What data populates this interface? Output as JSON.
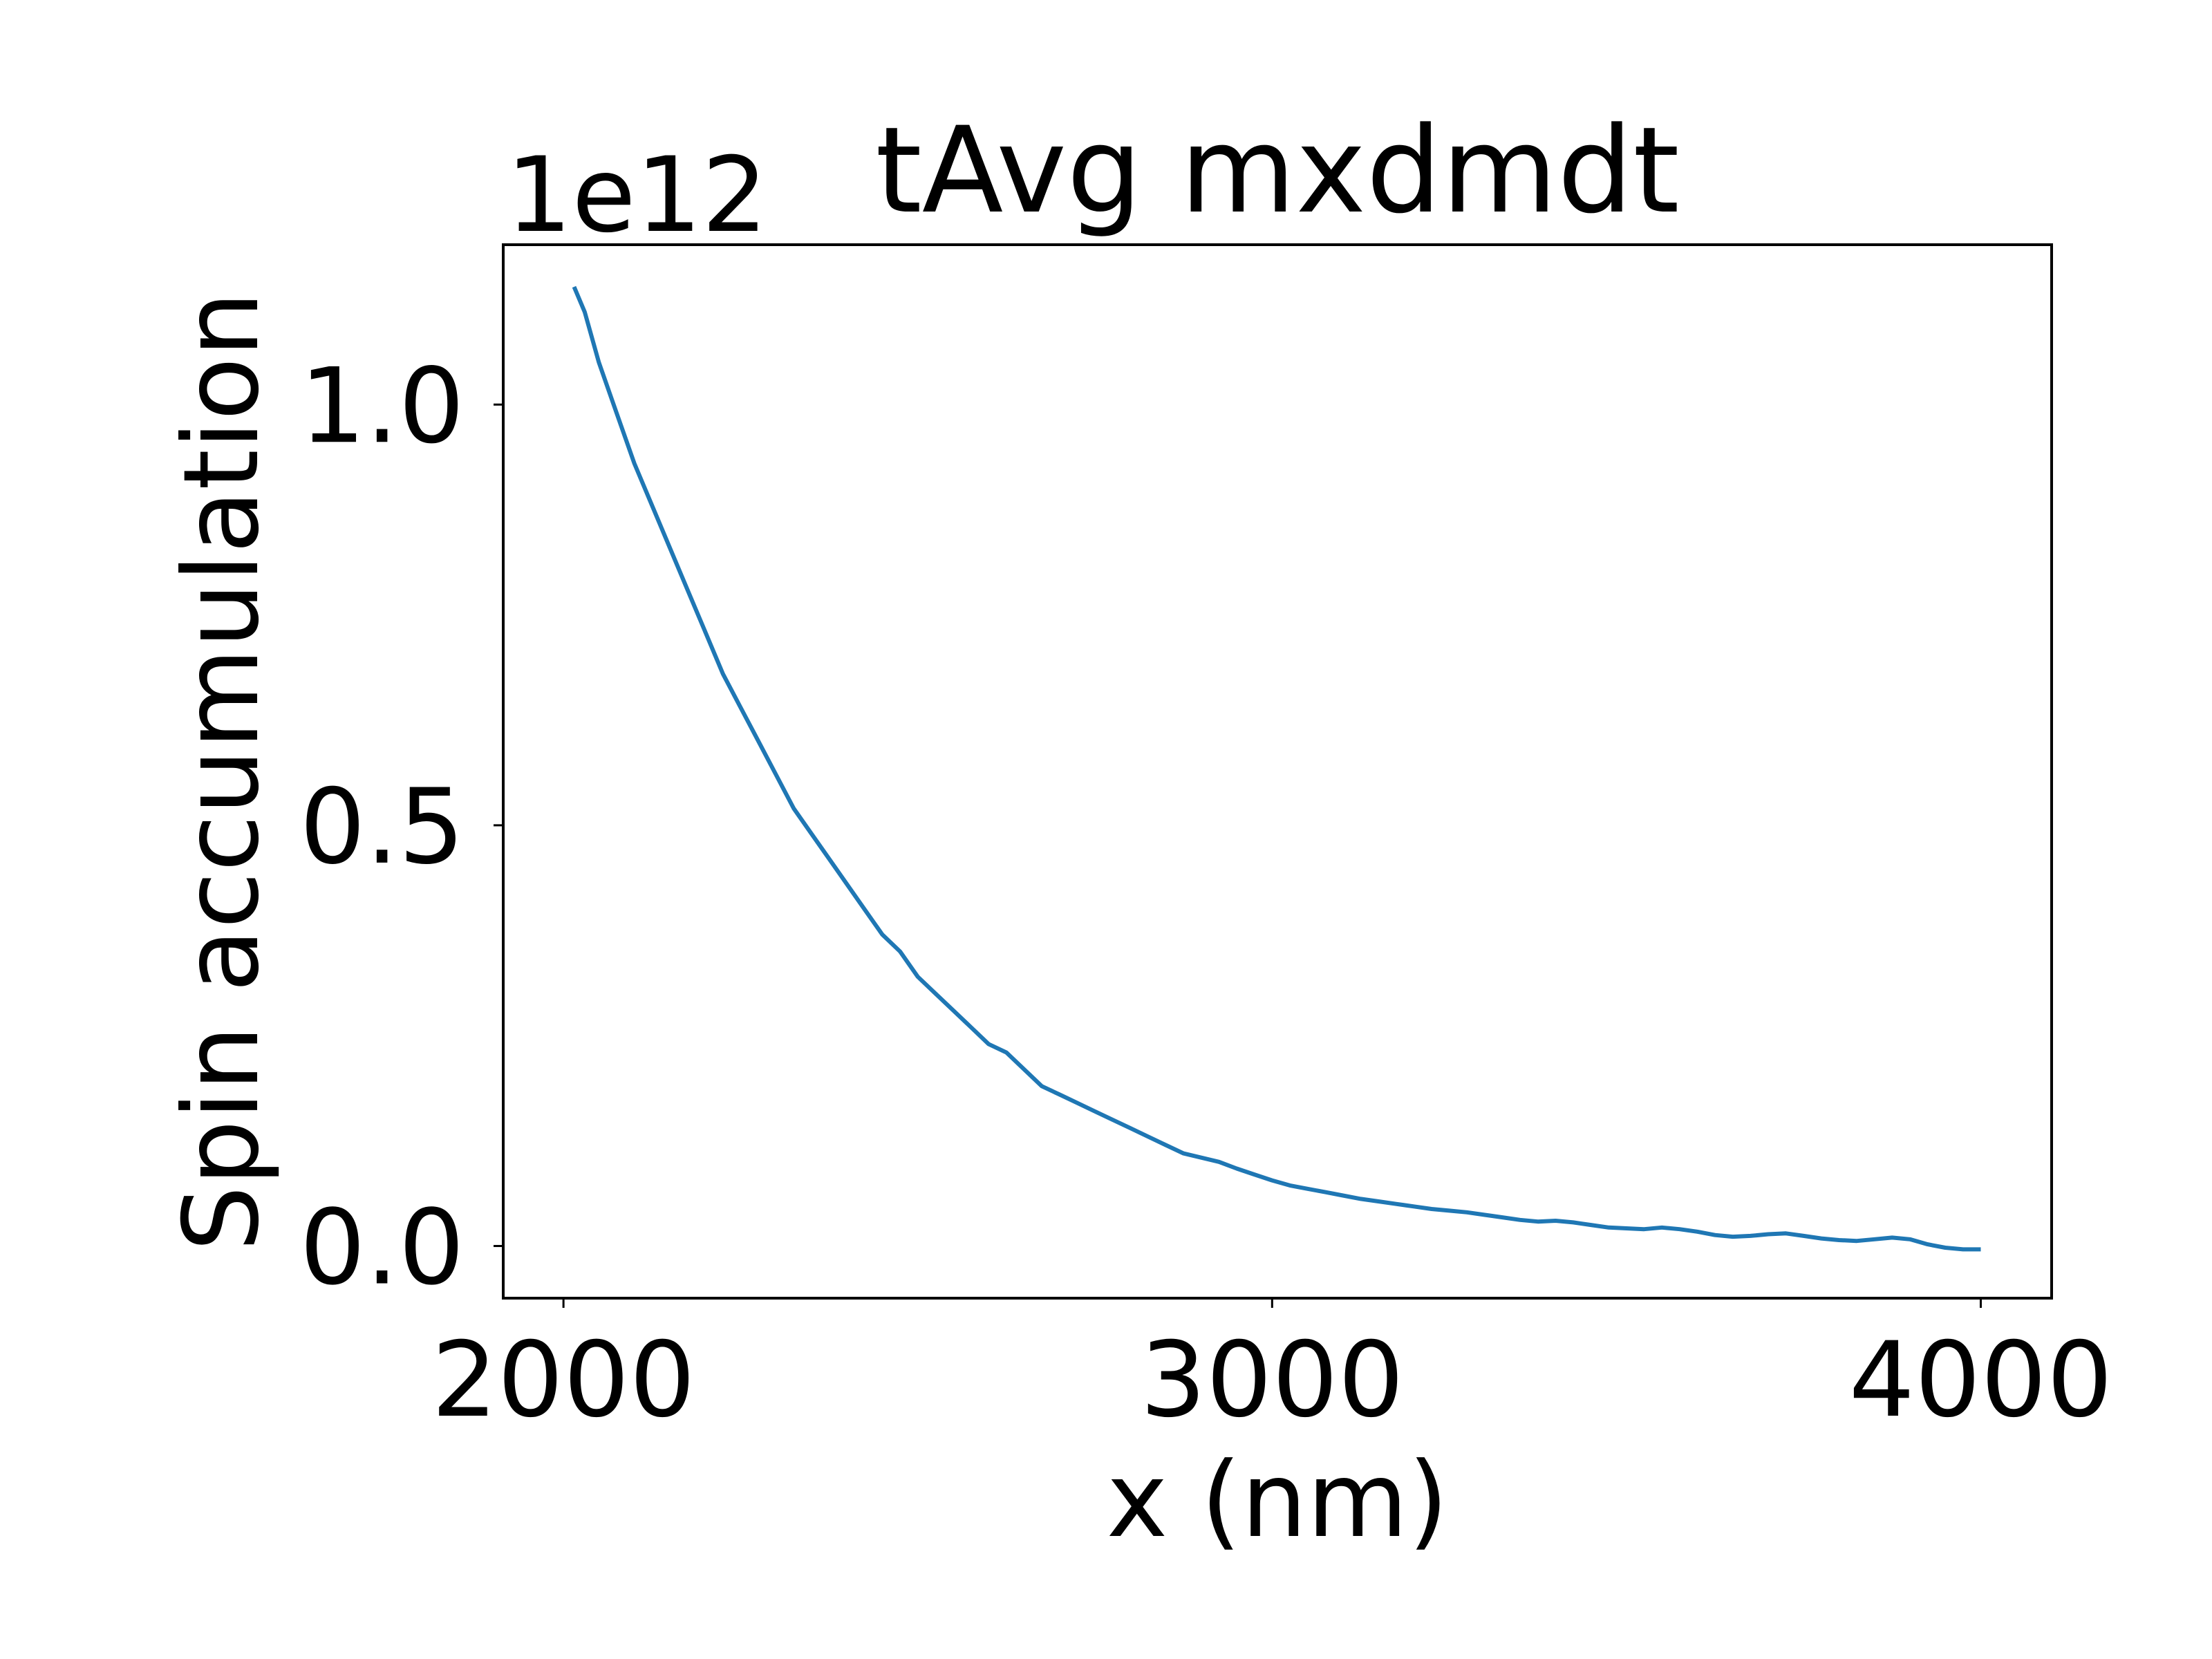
{
  "chart_data": {
    "type": "line",
    "title": "tAvg mxdmdt",
    "xlabel": "x (nm)",
    "ylabel": "Spin accumulation",
    "y_offset_label": "1e12",
    "y_scale_factor": 1000000000000.0,
    "xlim": [
      1915,
      4100
    ],
    "ylim": [
      -0.062,
      1.19
    ],
    "xticks": [
      2000,
      3000,
      4000
    ],
    "xtick_labels": [
      "2000",
      "3000",
      "4000"
    ],
    "yticks": [
      0.0,
      0.5,
      1.0
    ],
    "ytick_labels": [
      "0.0",
      "0.5",
      "1.0"
    ],
    "grid": false,
    "legend": "none",
    "series": [
      {
        "color": "#1f77b4",
        "x": [
          2015,
          2030,
          2050,
          2075,
          2100,
          2125,
          2150,
          2175,
          2200,
          2225,
          2250,
          2275,
          2300,
          2325,
          2350,
          2375,
          2400,
          2425,
          2450,
          2475,
          2500,
          2525,
          2550,
          2575,
          2600,
          2625,
          2650,
          2675,
          2700,
          2725,
          2750,
          2775,
          2800,
          2825,
          2850,
          2875,
          2900,
          2925,
          2950,
          2975,
          3000,
          3025,
          3050,
          3075,
          3100,
          3125,
          3150,
          3175,
          3200,
          3225,
          3250,
          3275,
          3300,
          3325,
          3350,
          3375,
          3400,
          3425,
          3450,
          3475,
          3500,
          3525,
          3550,
          3575,
          3600,
          3625,
          3650,
          3675,
          3700,
          3725,
          3750,
          3775,
          3800,
          3825,
          3850,
          3875,
          3900,
          3925,
          3950,
          3975,
          4000
        ],
        "y": [
          1.14,
          1.11,
          1.05,
          0.99,
          0.93,
          0.88,
          0.83,
          0.78,
          0.73,
          0.68,
          0.64,
          0.6,
          0.56,
          0.52,
          0.49,
          0.46,
          0.43,
          0.4,
          0.37,
          0.35,
          0.32,
          0.3,
          0.28,
          0.26,
          0.24,
          0.23,
          0.21,
          0.19,
          0.18,
          0.17,
          0.16,
          0.15,
          0.14,
          0.13,
          0.12,
          0.11,
          0.105,
          0.1,
          0.092,
          0.085,
          0.078,
          0.072,
          0.068,
          0.064,
          0.06,
          0.056,
          0.053,
          0.05,
          0.047,
          0.044,
          0.042,
          0.04,
          0.037,
          0.034,
          0.031,
          0.029,
          0.03,
          0.028,
          0.025,
          0.022,
          0.021,
          0.02,
          0.022,
          0.02,
          0.017,
          0.013,
          0.011,
          0.012,
          0.014,
          0.015,
          0.012,
          0.009,
          0.007,
          0.006,
          0.008,
          0.01,
          0.008,
          0.002,
          -0.002,
          -0.004,
          -0.004
        ]
      }
    ]
  }
}
